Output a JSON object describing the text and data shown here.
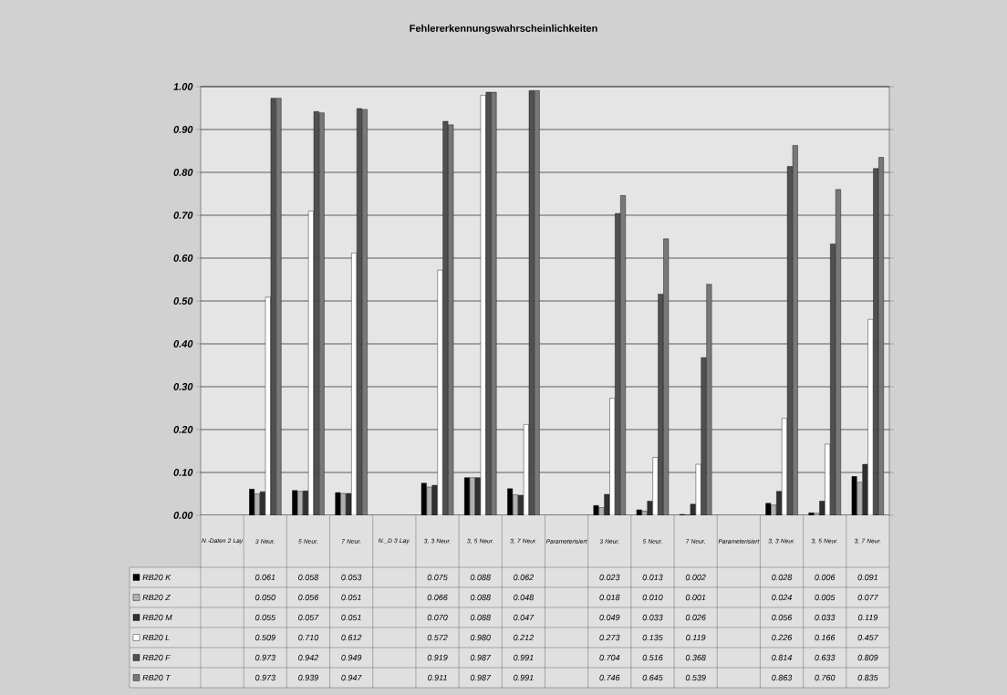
{
  "chart_data": {
    "type": "bar",
    "title": "Fehlererkennungswahrscheinlichkeiten",
    "categories": [
      "N.-Daten 2 Lay",
      "3 Neur.",
      "5 Neur.",
      "7 Neur.",
      "N._D 3 Lay.",
      "3, 3 Neur.",
      "3, 5 Neur.",
      "3, 7 Neur.",
      "Parameterisiert",
      "3 Neur.",
      "5 Neur.",
      "7 Neur.",
      "Parameterisiert",
      "3, 3 Neur.",
      "3, 5 Neur.",
      "3, 7 Neur."
    ],
    "series": [
      {
        "name": "RB20 K",
        "color": "#000000",
        "values": [
          null,
          0.061,
          0.058,
          0.053,
          null,
          0.075,
          0.088,
          0.062,
          null,
          0.023,
          0.013,
          0.002,
          null,
          0.028,
          0.006,
          0.091
        ],
        "value_labels": [
          null,
          "0.061",
          "0.058",
          "0.053",
          null,
          "0.075",
          "0.088",
          "0.062",
          null,
          "0.023",
          "0.013",
          "0.002",
          null,
          "0.028",
          "0.006",
          "0.091"
        ]
      },
      {
        "name": "RB20 Z",
        "color": "#b0b0b0",
        "values": [
          null,
          0.05,
          0.056,
          0.051,
          null,
          0.066,
          0.088,
          0.048,
          null,
          0.018,
          0.01,
          0.001,
          null,
          0.024,
          0.005,
          0.077
        ],
        "value_labels": [
          null,
          "0.050",
          "0.056",
          "0.051",
          null,
          "0.066",
          "0.088",
          "0.048",
          null,
          "0.018",
          "0.010",
          "0.001",
          null,
          "0.024",
          "0.005",
          "0.077"
        ]
      },
      {
        "name": "RB20 M",
        "color": "#303030",
        "values": [
          null,
          0.055,
          0.057,
          0.051,
          null,
          0.07,
          0.088,
          0.047,
          null,
          0.049,
          0.033,
          0.026,
          null,
          0.056,
          0.033,
          0.119
        ],
        "value_labels": [
          null,
          "0.055",
          "0.057",
          "0.051",
          null,
          "0.070",
          "0.088",
          "0.047",
          null,
          "0.049",
          "0.033",
          "0.026",
          null,
          "0.056",
          "0.033",
          "0.119"
        ]
      },
      {
        "name": "RB20 L",
        "color": "#ffffff",
        "values": [
          null,
          0.509,
          0.71,
          0.612,
          null,
          0.572,
          0.98,
          0.212,
          null,
          0.273,
          0.135,
          0.119,
          null,
          0.226,
          0.166,
          0.457
        ],
        "value_labels": [
          null,
          "0.509",
          "0.710",
          "0.612",
          null,
          "0.572",
          "0.980",
          "0.212",
          null,
          "0.273",
          "0.135",
          "0.119",
          null,
          "0.226",
          "0.166",
          "0.457"
        ]
      },
      {
        "name": "RB20 F",
        "color": "#505050",
        "values": [
          null,
          0.973,
          0.942,
          0.949,
          null,
          0.919,
          0.987,
          0.991,
          null,
          0.704,
          0.516,
          0.368,
          null,
          0.814,
          0.633,
          0.809
        ],
        "value_labels": [
          null,
          "0.973",
          "0.942",
          "0.949",
          null,
          "0.919",
          "0.987",
          "0.991",
          null,
          "0.704",
          "0.516",
          "0.368",
          null,
          "0.814",
          "0.633",
          "0.809"
        ]
      },
      {
        "name": "RB20 T",
        "color": "#787878",
        "values": [
          null,
          0.973,
          0.939,
          0.947,
          null,
          0.911,
          0.987,
          0.991,
          null,
          0.746,
          0.645,
          0.539,
          null,
          0.863,
          0.76,
          0.835
        ],
        "value_labels": [
          null,
          "0.973",
          "0.939",
          "0.947",
          null,
          "0.911",
          "0.987",
          "0.991",
          null,
          "0.746",
          "0.645",
          "0.539",
          null,
          "0.863",
          "0.760",
          "0.835"
        ]
      }
    ],
    "ylim": [
      0,
      1
    ],
    "yticks": [
      {
        "value": 0,
        "label": "0.00"
      },
      {
        "value": 0.1,
        "label": "0.10"
      },
      {
        "value": 0.2,
        "label": "0.20"
      },
      {
        "value": 0.3,
        "label": "0.30"
      },
      {
        "value": 0.4,
        "label": "0.40"
      },
      {
        "value": 0.5,
        "label": "0.50"
      },
      {
        "value": 0.6,
        "label": "0.60"
      },
      {
        "value": 0.7,
        "label": "0.70"
      },
      {
        "value": 0.8,
        "label": "0.80"
      },
      {
        "value": 0.9,
        "label": "0.90"
      },
      {
        "value": 1,
        "label": "1.00"
      }
    ],
    "grid": "y",
    "legend": "bottom"
  }
}
